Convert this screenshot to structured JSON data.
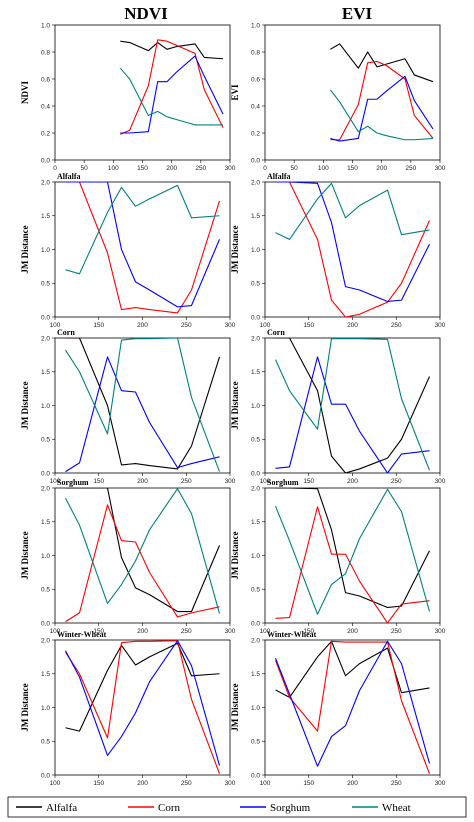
{
  "column_titles": [
    "NDVI",
    "EVI"
  ],
  "legend": [
    {
      "label": "Alfalfa",
      "color": "#000000"
    },
    {
      "label": "Corn",
      "color": "#ff0000"
    },
    {
      "label": "Sorghum",
      "color": "#0000ff"
    },
    {
      "label": "Wheat",
      "color": "#008080"
    }
  ],
  "chart_data": [
    {
      "type": "line",
      "title": "NDVI",
      "panel_label": "",
      "ylabel": "NDVI",
      "xlim": [
        0,
        300
      ],
      "ylim": [
        0,
        1.0
      ],
      "xticks": [
        "0",
        "50",
        "100",
        "150",
        "200",
        "250",
        "300"
      ],
      "yticks": [
        "0.0",
        "0.2",
        "0.4",
        "0.6",
        "0.8",
        "1.0"
      ],
      "series": [
        {
          "name": "Alfalfa",
          "color": "#000000",
          "x": [
            112,
            128,
            160,
            176,
            192,
            208,
            240,
            256,
            288
          ],
          "y": [
            0.88,
            0.87,
            0.81,
            0.87,
            0.82,
            0.84,
            0.86,
            0.76,
            0.75
          ]
        },
        {
          "name": "Corn",
          "color": "#ff0000",
          "x": [
            112,
            128,
            160,
            176,
            192,
            208,
            240,
            256,
            288
          ],
          "y": [
            0.19,
            0.22,
            0.55,
            0.89,
            0.88,
            0.85,
            0.79,
            0.52,
            0.24
          ]
        },
        {
          "name": "Sorghum",
          "color": "#0000ff",
          "x": [
            112,
            128,
            160,
            176,
            192,
            208,
            240,
            256,
            288
          ],
          "y": [
            0.2,
            0.2,
            0.21,
            0.58,
            0.58,
            0.65,
            0.77,
            0.62,
            0.34
          ]
        },
        {
          "name": "Wheat",
          "color": "#008080",
          "x": [
            112,
            128,
            160,
            176,
            192,
            208,
            240,
            256,
            288
          ],
          "y": [
            0.68,
            0.6,
            0.33,
            0.36,
            0.32,
            0.3,
            0.26,
            0.26,
            0.26
          ]
        }
      ]
    },
    {
      "type": "line",
      "title": "EVI",
      "panel_label": "",
      "ylabel": "EVI",
      "xlim": [
        0,
        300
      ],
      "ylim": [
        0,
        1.0
      ],
      "xticks": [
        "0",
        "50",
        "100",
        "150",
        "200",
        "250",
        "300"
      ],
      "yticks": [
        "0.0",
        "0.2",
        "0.4",
        "0.6",
        "0.8",
        "1.0"
      ],
      "series": [
        {
          "name": "Alfalfa",
          "color": "#000000",
          "x": [
            112,
            128,
            160,
            176,
            192,
            208,
            240,
            256,
            288
          ],
          "y": [
            0.82,
            0.86,
            0.68,
            0.8,
            0.69,
            0.71,
            0.75,
            0.63,
            0.58
          ]
        },
        {
          "name": "Corn",
          "color": "#ff0000",
          "x": [
            112,
            128,
            160,
            176,
            192,
            208,
            240,
            256,
            288
          ],
          "y": [
            0.15,
            0.15,
            0.41,
            0.72,
            0.73,
            0.7,
            0.6,
            0.33,
            0.16
          ]
        },
        {
          "name": "Sorghum",
          "color": "#0000ff",
          "x": [
            112,
            128,
            160,
            176,
            192,
            208,
            240,
            256,
            288
          ],
          "y": [
            0.16,
            0.14,
            0.16,
            0.45,
            0.45,
            0.51,
            0.62,
            0.44,
            0.23
          ]
        },
        {
          "name": "Wheat",
          "color": "#008080",
          "x": [
            112,
            128,
            160,
            176,
            192,
            208,
            240,
            256,
            288
          ],
          "y": [
            0.52,
            0.43,
            0.21,
            0.25,
            0.2,
            0.18,
            0.15,
            0.15,
            0.16
          ]
        }
      ]
    },
    {
      "type": "line",
      "title": "",
      "panel_label": "Alfalfa",
      "ylabel": "JM Distance",
      "xlim": [
        100,
        300
      ],
      "ylim": [
        0,
        2.0
      ],
      "xticks": [
        "100",
        "150",
        "200",
        "250",
        "300"
      ],
      "yticks": [
        "0.0",
        "0.5",
        "1.0",
        "1.5",
        "2.0"
      ],
      "series": [
        {
          "name": "Corn",
          "color": "#ff0000",
          "x": [
            112,
            128,
            160,
            176,
            192,
            208,
            240,
            256,
            288
          ],
          "y": [
            2.0,
            2.0,
            0.95,
            0.11,
            0.14,
            0.11,
            0.06,
            0.4,
            1.72
          ]
        },
        {
          "name": "Sorghum",
          "color": "#0000ff",
          "x": [
            112,
            128,
            160,
            176,
            192,
            208,
            240,
            256,
            288
          ],
          "y": [
            2.0,
            2.0,
            2.0,
            1.0,
            0.52,
            0.4,
            0.15,
            0.17,
            1.15
          ]
        },
        {
          "name": "Wheat",
          "color": "#008080",
          "x": [
            112,
            128,
            160,
            176,
            192,
            208,
            240,
            256,
            288
          ],
          "y": [
            0.7,
            0.64,
            1.55,
            1.92,
            1.64,
            1.75,
            1.95,
            1.47,
            1.5
          ]
        }
      ]
    },
    {
      "type": "line",
      "title": "",
      "panel_label": "Alfalfa",
      "ylabel": "JM Distance",
      "xlim": [
        100,
        300
      ],
      "ylim": [
        0,
        2.0
      ],
      "xticks": [
        "100",
        "150",
        "200",
        "250",
        "300"
      ],
      "yticks": [
        "0.0",
        "0.5",
        "1.0",
        "1.5",
        "2.0"
      ],
      "series": [
        {
          "name": "Corn",
          "color": "#ff0000",
          "x": [
            112,
            128,
            160,
            176,
            192,
            208,
            240,
            256,
            288
          ],
          "y": [
            2.0,
            2.0,
            1.15,
            0.25,
            0.0,
            0.04,
            0.22,
            0.5,
            1.43
          ]
        },
        {
          "name": "Sorghum",
          "color": "#0000ff",
          "x": [
            112,
            128,
            160,
            176,
            192,
            208,
            240,
            256,
            288
          ],
          "y": [
            2.0,
            2.0,
            1.98,
            1.4,
            0.45,
            0.4,
            0.23,
            0.25,
            1.08
          ]
        },
        {
          "name": "Wheat",
          "color": "#008080",
          "x": [
            112,
            128,
            160,
            176,
            192,
            208,
            240,
            256,
            288
          ],
          "y": [
            1.25,
            1.15,
            1.75,
            1.98,
            1.47,
            1.65,
            1.88,
            1.22,
            1.29
          ]
        }
      ]
    },
    {
      "type": "line",
      "title": "",
      "panel_label": "Corn",
      "ylabel": "JM Distance",
      "xlim": [
        100,
        300
      ],
      "ylim": [
        0,
        2.0
      ],
      "xticks": [
        "100",
        "150",
        "200",
        "250",
        "300"
      ],
      "yticks": [
        "0.0",
        "0.5",
        "1.0",
        "1.5",
        "2.0"
      ],
      "series": [
        {
          "name": "Alfalfa",
          "color": "#000000",
          "x": [
            112,
            128,
            160,
            176,
            192,
            208,
            240,
            256,
            288
          ],
          "y": [
            2.0,
            2.0,
            1.0,
            0.12,
            0.14,
            0.11,
            0.06,
            0.4,
            1.72
          ]
        },
        {
          "name": "Sorghum",
          "color": "#0000ff",
          "x": [
            112,
            128,
            160,
            176,
            192,
            208,
            240,
            256,
            288
          ],
          "y": [
            0.02,
            0.15,
            1.72,
            1.22,
            1.2,
            0.75,
            0.08,
            0.14,
            0.24
          ]
        },
        {
          "name": "Wheat",
          "color": "#008080",
          "x": [
            112,
            128,
            160,
            176,
            192,
            208,
            240,
            256,
            288
          ],
          "y": [
            1.82,
            1.5,
            0.58,
            1.97,
            1.99,
            1.99,
            2.0,
            1.12,
            0.02
          ]
        }
      ]
    },
    {
      "type": "line",
      "title": "",
      "panel_label": "Corn",
      "ylabel": "JM Distance",
      "xlim": [
        100,
        300
      ],
      "ylim": [
        0,
        2.0
      ],
      "xticks": [
        "100",
        "150",
        "200",
        "250",
        "300"
      ],
      "yticks": [
        "0.0",
        "0.5",
        "1.0",
        "1.5",
        "2.0"
      ],
      "series": [
        {
          "name": "Alfalfa",
          "color": "#000000",
          "x": [
            112,
            128,
            160,
            176,
            192,
            208,
            240,
            256,
            288
          ],
          "y": [
            2.0,
            2.0,
            1.22,
            0.25,
            0.0,
            0.06,
            0.22,
            0.5,
            1.43
          ]
        },
        {
          "name": "Sorghum",
          "color": "#0000ff",
          "x": [
            112,
            128,
            160,
            176,
            192,
            208,
            240,
            256,
            288
          ],
          "y": [
            0.07,
            0.09,
            1.72,
            1.02,
            1.02,
            0.62,
            0.0,
            0.28,
            0.33
          ]
        },
        {
          "name": "Wheat",
          "color": "#008080",
          "x": [
            112,
            128,
            160,
            176,
            192,
            208,
            240,
            256,
            288
          ],
          "y": [
            1.68,
            1.22,
            0.65,
            1.99,
            1.99,
            1.99,
            1.98,
            1.1,
            0.04
          ]
        }
      ]
    },
    {
      "type": "line",
      "title": "",
      "panel_label": "Sorghum",
      "ylabel": "JM Distance",
      "xlim": [
        100,
        300
      ],
      "ylim": [
        0,
        2.0
      ],
      "xticks": [
        "100",
        "150",
        "200",
        "250",
        "300"
      ],
      "yticks": [
        "0.0",
        "0.5",
        "1.0",
        "1.5",
        "2.0"
      ],
      "series": [
        {
          "name": "Alfalfa",
          "color": "#000000",
          "x": [
            112,
            128,
            160,
            176,
            192,
            208,
            240,
            256,
            288
          ],
          "y": [
            2.0,
            2.0,
            2.0,
            0.97,
            0.52,
            0.42,
            0.17,
            0.17,
            1.15
          ]
        },
        {
          "name": "Corn",
          "color": "#ff0000",
          "x": [
            112,
            128,
            160,
            176,
            192,
            208,
            240,
            256,
            288
          ],
          "y": [
            0.02,
            0.15,
            1.75,
            1.22,
            1.2,
            0.75,
            0.09,
            0.15,
            0.24
          ]
        },
        {
          "name": "Wheat",
          "color": "#008080",
          "x": [
            112,
            128,
            160,
            176,
            192,
            208,
            240,
            256,
            288
          ],
          "y": [
            1.85,
            1.45,
            0.29,
            0.57,
            0.92,
            1.38,
            1.99,
            1.62,
            0.14
          ]
        }
      ]
    },
    {
      "type": "line",
      "title": "",
      "panel_label": "Sorghum",
      "ylabel": "JM Distance",
      "xlim": [
        100,
        300
      ],
      "ylim": [
        0,
        2.0
      ],
      "xticks": [
        "100",
        "150",
        "200",
        "250",
        "300"
      ],
      "yticks": [
        "0.0",
        "0.5",
        "1.0",
        "1.5",
        "2.0"
      ],
      "series": [
        {
          "name": "Alfalfa",
          "color": "#000000",
          "x": [
            112,
            128,
            160,
            176,
            192,
            208,
            240,
            256,
            288
          ],
          "y": [
            2.0,
            2.0,
            1.99,
            1.38,
            0.45,
            0.4,
            0.23,
            0.25,
            1.07
          ]
        },
        {
          "name": "Corn",
          "color": "#ff0000",
          "x": [
            112,
            128,
            160,
            176,
            192,
            208,
            240,
            256,
            288
          ],
          "y": [
            0.07,
            0.08,
            1.72,
            1.02,
            1.02,
            0.62,
            0.0,
            0.28,
            0.33
          ]
        },
        {
          "name": "Wheat",
          "color": "#008080",
          "x": [
            112,
            128,
            160,
            176,
            192,
            208,
            240,
            256,
            288
          ],
          "y": [
            1.73,
            1.22,
            0.13,
            0.57,
            0.73,
            1.25,
            1.98,
            1.65,
            0.17
          ]
        }
      ]
    },
    {
      "type": "line",
      "title": "",
      "panel_label": "Winter-Wheat",
      "ylabel": "JM Distance",
      "xlim": [
        100,
        300
      ],
      "ylim": [
        0,
        2.0
      ],
      "xticks": [
        "100",
        "150",
        "200",
        "250",
        "300"
      ],
      "yticks": [
        "0.0",
        "0.5",
        "1.0",
        "1.5",
        "2.0"
      ],
      "series": [
        {
          "name": "Alfalfa",
          "color": "#000000",
          "x": [
            112,
            128,
            160,
            176,
            192,
            208,
            240,
            256,
            288
          ],
          "y": [
            0.7,
            0.65,
            1.55,
            1.92,
            1.63,
            1.75,
            1.95,
            1.47,
            1.5
          ]
        },
        {
          "name": "Corn",
          "color": "#ff0000",
          "x": [
            112,
            128,
            160,
            176,
            192,
            208,
            240,
            256,
            288
          ],
          "y": [
            1.82,
            1.5,
            0.55,
            1.96,
            1.98,
            1.98,
            1.99,
            1.12,
            0.02
          ]
        },
        {
          "name": "Sorghum",
          "color": "#0000ff",
          "x": [
            112,
            128,
            160,
            176,
            192,
            208,
            240,
            256,
            288
          ],
          "y": [
            1.84,
            1.45,
            0.29,
            0.57,
            0.92,
            1.38,
            1.99,
            1.62,
            0.14
          ]
        }
      ]
    },
    {
      "type": "line",
      "title": "",
      "panel_label": "Winter-Wheat",
      "ylabel": "JM Distance",
      "xlim": [
        100,
        300
      ],
      "ylim": [
        0,
        2.0
      ],
      "xticks": [
        "100",
        "150",
        "200",
        "250",
        "300"
      ],
      "yticks": [
        "0.0",
        "0.5",
        "1.0",
        "1.5",
        "2.0"
      ],
      "series": [
        {
          "name": "Alfalfa",
          "color": "#000000",
          "x": [
            112,
            128,
            160,
            176,
            192,
            208,
            240,
            256,
            288
          ],
          "y": [
            1.26,
            1.15,
            1.75,
            1.98,
            1.47,
            1.65,
            1.88,
            1.22,
            1.29
          ]
        },
        {
          "name": "Corn",
          "color": "#ff0000",
          "x": [
            112,
            128,
            160,
            176,
            192,
            208,
            240,
            256,
            288
          ],
          "y": [
            1.7,
            1.15,
            0.65,
            1.98,
            1.97,
            1.97,
            1.97,
            1.1,
            0.02
          ]
        },
        {
          "name": "Sorghum",
          "color": "#0000ff",
          "x": [
            112,
            128,
            160,
            176,
            192,
            208,
            240,
            256,
            288
          ],
          "y": [
            1.73,
            1.2,
            0.13,
            0.57,
            0.73,
            1.25,
            1.98,
            1.65,
            0.17
          ]
        }
      ]
    }
  ]
}
